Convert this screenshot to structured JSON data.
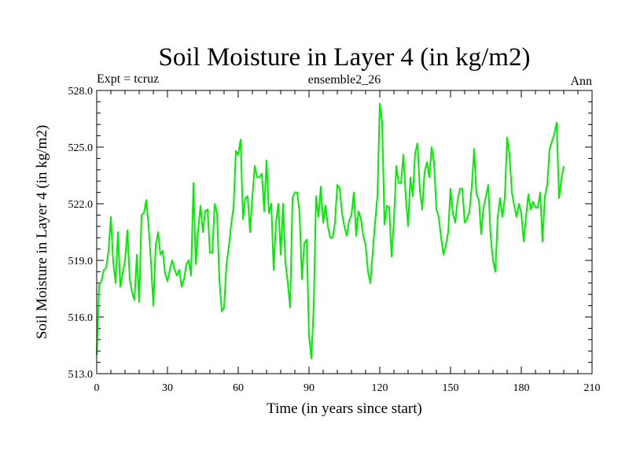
{
  "chart_data": {
    "type": "line",
    "title": "Soil Moisture in Layer 4 (in kg/m2)",
    "subtitle_left": "Expt = tcruz",
    "subtitle_center": "ensemble2_26",
    "subtitle_right": "Ann",
    "xlabel": "Time (in years since start)",
    "ylabel": "Soil Moisture in Layer 4 (in kg/m2)",
    "xlim": [
      0,
      210
    ],
    "ylim": [
      513,
      528
    ],
    "x_ticks": [
      0,
      30,
      60,
      90,
      120,
      150,
      180,
      210
    ],
    "x_tick_labels": [
      "0",
      "30",
      "60",
      "90",
      "120",
      "150",
      "180",
      "210"
    ],
    "y_ticks": [
      513,
      516,
      519,
      522,
      525,
      528
    ],
    "y_tick_labels": [
      "513.0",
      "516.0",
      "519.0",
      "522.0",
      "525.0",
      "528.0"
    ],
    "grid": false,
    "line_color": "#00ee00",
    "series": [
      {
        "x_start": 0,
        "x_step": 1,
        "values": [
          514.0,
          517.7,
          517.9,
          518.5,
          518.6,
          519.5,
          521.3,
          518.9,
          517.8,
          520.5,
          517.6,
          518.3,
          519.0,
          520.6,
          518.0,
          517.3,
          516.9,
          519.3,
          516.8,
          521.4,
          521.5,
          522.2,
          520.8,
          518.9,
          516.6,
          519.8,
          520.5,
          519.3,
          519.5,
          518.3,
          517.9,
          518.5,
          519.0,
          518.5,
          518.2,
          518.5,
          517.6,
          518.0,
          518.8,
          519.0,
          518.2,
          523.1,
          518.8,
          520.6,
          521.9,
          520.5,
          521.6,
          521.7,
          519.4,
          519.4,
          522.0,
          521.5,
          518.0,
          516.3,
          516.5,
          518.8,
          519.7,
          520.9,
          521.8,
          524.8,
          524.6,
          525.4,
          521.2,
          522.3,
          522.4,
          520.5,
          522.4,
          524.0,
          523.4,
          523.4,
          523.6,
          521.6,
          524.3,
          521.5,
          522.0,
          518.5,
          521.0,
          522.0,
          519.3,
          522.0,
          518.9,
          517.8,
          516.5,
          522.3,
          522.6,
          522.6,
          521.5,
          518.0,
          519.9,
          520.1,
          515.0,
          513.8,
          516.6,
          522.4,
          521.3,
          522.9,
          521.0,
          521.9,
          520.8,
          520.2,
          520.2,
          521.0,
          523.0,
          522.8,
          521.5,
          520.8,
          520.3,
          521.1,
          521.4,
          522.6,
          520.3,
          521.6,
          521.2,
          520.3,
          519.8,
          518.4,
          517.8,
          519.4,
          521.0,
          522.4,
          527.3,
          526.3,
          520.9,
          521.9,
          521.8,
          519.2,
          521.1,
          524.0,
          523.1,
          523.1,
          524.6,
          522.4,
          520.8,
          523.4,
          522.4,
          524.7,
          525.2,
          522.7,
          521.7,
          523.7,
          524.2,
          523.4,
          525.0,
          524.2,
          521.7,
          521.3,
          520.2,
          519.3,
          519.8,
          520.5,
          522.8,
          521.5,
          521.0,
          522.2,
          522.8,
          522.8,
          521.0,
          521.2,
          521.6,
          522.9,
          524.9,
          522.5,
          522.2,
          520.4,
          521.8,
          522.4,
          523.0,
          520.3,
          519.0,
          518.4,
          521.3,
          522.3,
          521.3,
          522.3,
          525.5,
          524.6,
          522.6,
          521.9,
          521.3,
          522.0,
          521.5,
          520.0,
          521.3,
          522.5,
          521.7,
          522.1,
          521.8,
          521.8,
          522.6,
          520.0,
          522.4,
          523.0,
          524.9,
          525.3,
          525.7,
          526.3,
          522.3,
          523.3,
          524.0
        ]
      }
    ]
  }
}
